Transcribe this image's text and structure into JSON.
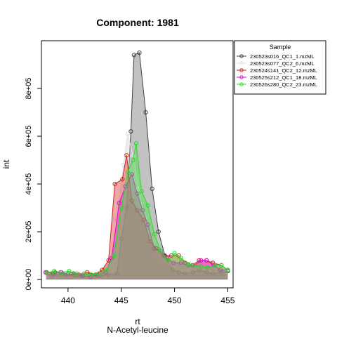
{
  "chart_data": {
    "type": "area",
    "title": "Component: 1981",
    "xlabel": "rt",
    "xlabel2": "N-Acetyl-leucine",
    "ylabel": "int",
    "xlim": [
      437.5,
      455.5
    ],
    "ylim": [
      -35000,
      1000000
    ],
    "x_ticks": [
      440,
      445,
      450,
      455
    ],
    "x_tick_labels": [
      "440",
      "445",
      "450",
      "455"
    ],
    "y_ticks": [
      0,
      200000,
      400000,
      600000,
      800000
    ],
    "y_tick_labels": [
      "0e+00",
      "2e+05",
      "4e+05",
      "6e+05",
      "8e+05"
    ],
    "grid": false,
    "legend": {
      "title": "Sample",
      "position": "top-right"
    },
    "series": [
      {
        "name": "230523s016_QC1_1.mzML",
        "color": "#404040",
        "fill": "rgba(120,120,120,0.45)",
        "points": [
          [
            438.0,
            30000
          ],
          [
            438.5,
            15000
          ],
          [
            439.0,
            20000
          ],
          [
            439.8,
            18000
          ],
          [
            440.5,
            25000
          ],
          [
            441.3,
            18000
          ],
          [
            442.0,
            20000
          ],
          [
            443.0,
            15000
          ],
          [
            443.8,
            20000
          ],
          [
            444.6,
            25000
          ],
          [
            445.0,
            170000
          ],
          [
            445.5,
            300000
          ],
          [
            445.9,
            620000
          ],
          [
            446.2,
            940000
          ],
          [
            446.7,
            950000
          ],
          [
            447.3,
            700000
          ],
          [
            447.9,
            380000
          ],
          [
            448.5,
            200000
          ],
          [
            449.1,
            100000
          ],
          [
            449.8,
            40000
          ],
          [
            450.4,
            30000
          ],
          [
            451.0,
            25000
          ],
          [
            451.7,
            30000
          ],
          [
            452.3,
            40000
          ],
          [
            453.0,
            30000
          ],
          [
            453.6,
            25000
          ],
          [
            454.4,
            30000
          ],
          [
            455.0,
            35000
          ]
        ]
      },
      {
        "name": "230523s077_QC2_6.mzML",
        "color": "#e0e0e0",
        "fill": "rgba(205,205,205,0.35)",
        "points": [
          [
            438.0,
            25000
          ],
          [
            439.0,
            25000
          ],
          [
            440.0,
            28000
          ],
          [
            441.0,
            25000
          ],
          [
            442.0,
            25000
          ],
          [
            443.0,
            30000
          ],
          [
            444.0,
            80000
          ],
          [
            444.6,
            250000
          ],
          [
            445.2,
            480000
          ],
          [
            445.6,
            610000
          ],
          [
            446.1,
            520000
          ],
          [
            446.6,
            380000
          ],
          [
            447.2,
            260000
          ],
          [
            447.8,
            160000
          ],
          [
            448.4,
            110000
          ],
          [
            449.0,
            80000
          ],
          [
            449.6,
            60000
          ],
          [
            450.3,
            60000
          ],
          [
            451.0,
            55000
          ],
          [
            451.7,
            55000
          ],
          [
            452.3,
            55000
          ],
          [
            453.0,
            50000
          ],
          [
            453.6,
            45000
          ],
          [
            454.2,
            40000
          ],
          [
            455.0,
            40000
          ]
        ]
      },
      {
        "name": "230524s141_QC2_12.mzML",
        "color": "#cc2222",
        "fill": "rgba(225,60,60,0.45)",
        "points": [
          [
            438.0,
            28000
          ],
          [
            438.8,
            30000
          ],
          [
            439.5,
            25000
          ],
          [
            440.3,
            22000
          ],
          [
            441.0,
            20000
          ],
          [
            441.8,
            30000
          ],
          [
            442.6,
            20000
          ],
          [
            443.2,
            40000
          ],
          [
            443.8,
            80000
          ],
          [
            444.4,
            400000
          ],
          [
            445.1,
            420000
          ],
          [
            445.5,
            520000
          ],
          [
            446.0,
            330000
          ],
          [
            446.5,
            290000
          ],
          [
            447.1,
            250000
          ],
          [
            447.7,
            160000
          ],
          [
            448.3,
            130000
          ],
          [
            449.0,
            100000
          ],
          [
            449.7,
            100000
          ],
          [
            450.4,
            100000
          ],
          [
            451.0,
            70000
          ],
          [
            451.7,
            60000
          ],
          [
            452.3,
            80000
          ],
          [
            453.0,
            80000
          ],
          [
            453.6,
            70000
          ],
          [
            454.4,
            60000
          ],
          [
            455.0,
            40000
          ]
        ]
      },
      {
        "name": "230525s212_QC1_18.mzML",
        "color": "#d010d0",
        "fill": "rgba(240,40,220,0.45)",
        "points": [
          [
            437.9,
            30000
          ],
          [
            438.6,
            25000
          ],
          [
            439.3,
            30000
          ],
          [
            440.0,
            22000
          ],
          [
            440.7,
            20000
          ],
          [
            441.4,
            15000
          ],
          [
            442.1,
            10000
          ],
          [
            442.8,
            20000
          ],
          [
            443.5,
            30000
          ],
          [
            444.1,
            90000
          ],
          [
            444.8,
            320000
          ],
          [
            445.4,
            390000
          ],
          [
            446.0,
            440000
          ],
          [
            446.5,
            360000
          ],
          [
            447.0,
            290000
          ],
          [
            447.5,
            230000
          ],
          [
            448.1,
            130000
          ],
          [
            448.7,
            120000
          ],
          [
            449.3,
            90000
          ],
          [
            449.9,
            70000
          ],
          [
            450.6,
            70000
          ],
          [
            451.3,
            60000
          ],
          [
            451.9,
            60000
          ],
          [
            452.5,
            80000
          ],
          [
            453.0,
            80000
          ],
          [
            453.7,
            60000
          ],
          [
            454.3,
            40000
          ],
          [
            455.0,
            40000
          ]
        ]
      },
      {
        "name": "230526s280_QC2_23.mzML",
        "color": "#22dd22",
        "fill": "rgba(60,230,60,0.40)",
        "points": [
          [
            438.0,
            30000
          ],
          [
            438.7,
            35000
          ],
          [
            439.4,
            30000
          ],
          [
            440.1,
            35000
          ],
          [
            440.8,
            25000
          ],
          [
            441.5,
            25000
          ],
          [
            442.2,
            20000
          ],
          [
            442.9,
            25000
          ],
          [
            443.6,
            40000
          ],
          [
            444.3,
            100000
          ],
          [
            445.0,
            300000
          ],
          [
            445.6,
            450000
          ],
          [
            446.1,
            500000
          ],
          [
            446.4,
            570000
          ],
          [
            446.9,
            370000
          ],
          [
            447.5,
            310000
          ],
          [
            448.1,
            190000
          ],
          [
            448.7,
            120000
          ],
          [
            449.4,
            80000
          ],
          [
            450.0,
            110000
          ],
          [
            450.6,
            90000
          ],
          [
            451.3,
            65000
          ],
          [
            451.9,
            60000
          ],
          [
            452.5,
            55000
          ],
          [
            453.1,
            50000
          ],
          [
            453.8,
            60000
          ],
          [
            454.4,
            60000
          ],
          [
            455.0,
            40000
          ]
        ]
      }
    ]
  }
}
